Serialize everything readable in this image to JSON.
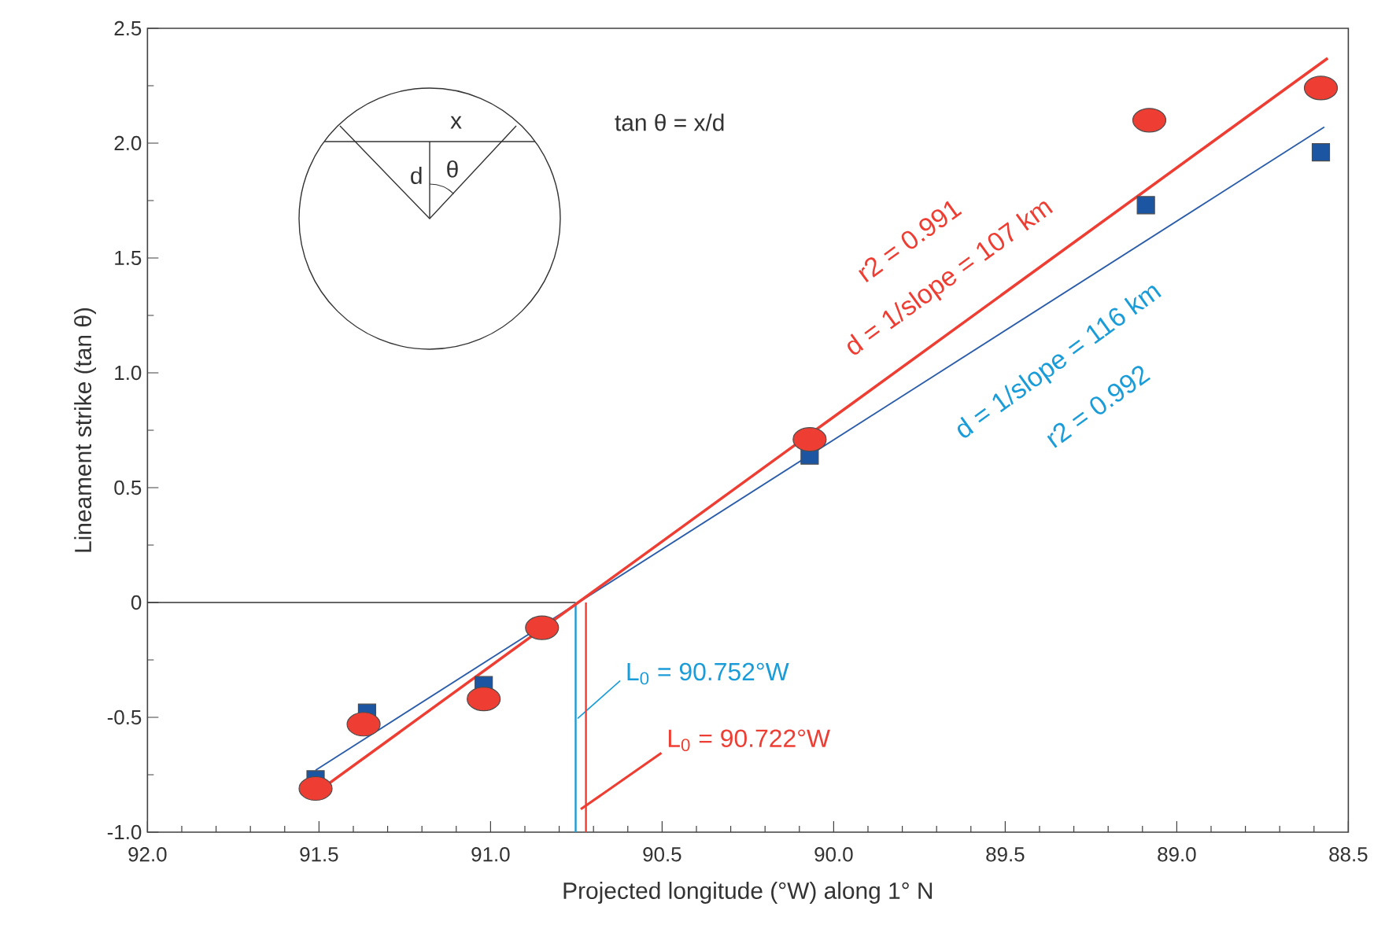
{
  "chart_data": {
    "type": "scatter",
    "xlabel": "Projected longitude (°W) along 1° N",
    "ylabel": "Lineament strike (tan θ)",
    "xlim": [
      92.0,
      88.5
    ],
    "xticks": [
      {
        "value": 92.0,
        "label": "92.0"
      },
      {
        "value": 91.5,
        "label": "91.5"
      },
      {
        "value": 91.0,
        "label": "91.0"
      },
      {
        "value": 90.5,
        "label": "90.5"
      },
      {
        "value": 90.0,
        "label": "90.0"
      },
      {
        "value": 89.5,
        "label": "89.5"
      },
      {
        "value": 89.0,
        "label": "89.0"
      },
      {
        "value": 88.5,
        "label": "88.5"
      }
    ],
    "ylim": [
      -1.0,
      2.5
    ],
    "yticks": [
      {
        "value": -1.0,
        "label": "-1.0"
      },
      {
        "value": -0.5,
        "label": "-0.5"
      },
      0,
      0.5,
      {
        "value": 1.0,
        "label": "1.0"
      },
      1.5,
      {
        "value": 2.0,
        "label": "2.0"
      },
      2.5
    ],
    "series": [
      {
        "marker": "square",
        "color": "#1c56a3",
        "x": [
          91.51,
          91.36,
          91.02,
          90.07,
          89.09,
          88.58
        ],
        "values": [
          -0.77,
          -0.48,
          -0.36,
          0.64,
          1.73,
          1.96
        ]
      },
      {
        "marker": "circle",
        "color": "#ee3e33",
        "x": [
          91.51,
          91.37,
          91.02,
          90.85,
          90.07,
          89.08,
          88.58
        ],
        "values": [
          -0.81,
          -0.53,
          -0.42,
          -0.11,
          0.71,
          2.1,
          2.24
        ]
      },
      {
        "type": "line",
        "color": "#2a5caa",
        "x": [
          91.51,
          88.57
        ],
        "values": [
          -0.73,
          2.07
        ]
      },
      {
        "type": "line",
        "color": "#ee3e33",
        "x": [
          91.51,
          88.56
        ],
        "values": [
          -0.83,
          2.37
        ]
      }
    ],
    "ref_lines": [
      {
        "axis": "y",
        "value": 0,
        "color": "#333333"
      },
      {
        "axis": "x",
        "value": 90.752,
        "label": "L$_{0}$ = 90.752°W",
        "color": "#1a9cd8"
      },
      {
        "axis": "x",
        "value": 90.722,
        "label": "L$_{0}$ = 90.722°W",
        "color": "#ee3e33"
      }
    ],
    "annotations": [
      "r2 = 0.991",
      "d = 1/slope = 107 km",
      "d = 1/slope = 116 km",
      "r2 = 0.992",
      "tan θ = x/d",
      "x",
      "d",
      "θ"
    ],
    "grid": false
  }
}
